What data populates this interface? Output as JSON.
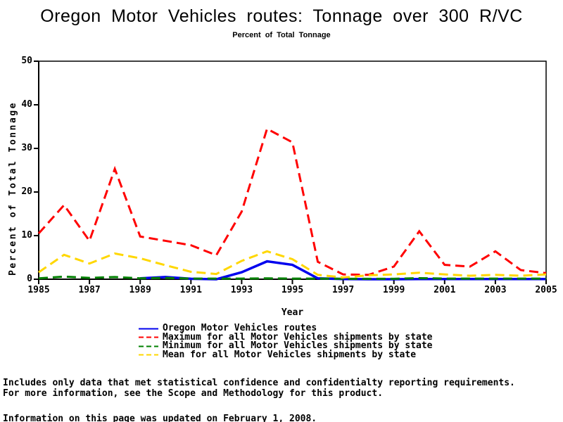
{
  "chart_data": {
    "type": "line",
    "title": "Oregon Motor Vehicles routes: Tonnage over 300 R/VC",
    "subtitle": "Percent of Total Tonnage",
    "xlabel": "Year",
    "ylabel": "Percent of Total Tonnage",
    "ylim": [
      0,
      50
    ],
    "yticks": [
      0,
      10,
      20,
      30,
      40,
      50
    ],
    "xticks": [
      1985,
      1987,
      1989,
      1991,
      1993,
      1995,
      1997,
      1999,
      2001,
      2003,
      2005
    ],
    "x": [
      1985,
      1986,
      1987,
      1988,
      1989,
      1990,
      1991,
      1992,
      1993,
      1994,
      1995,
      1996,
      1997,
      1998,
      1999,
      2000,
      2001,
      2002,
      2003,
      2004,
      2005
    ],
    "grid": false,
    "legend_position": "bottom",
    "series": [
      {
        "name": "Oregon Motor Vehicles routes",
        "color": "#0000EE",
        "style": "solid",
        "values": [
          null,
          null,
          null,
          null,
          0.2,
          0.5,
          0.1,
          0.0,
          1.6,
          4.1,
          3.3,
          0.2,
          0.05,
          0.0,
          0.0,
          0.05,
          0.05,
          0.05,
          0.05,
          0.05,
          0.05
        ]
      },
      {
        "name": "Maximum for all Motor Vehicles shipments by state",
        "color": "#FF0000",
        "style": "dashed",
        "values": [
          10.5,
          17.0,
          8.8,
          25.3,
          9.8,
          8.8,
          7.8,
          5.5,
          15.5,
          34.5,
          31.4,
          4.0,
          1.1,
          1.0,
          2.9,
          11.0,
          3.3,
          2.9,
          6.4,
          2.1,
          1.4
        ]
      },
      {
        "name": "Minimum for all Motor Vehicles shipments by state",
        "color": "#008000",
        "style": "dashed",
        "values": [
          0.2,
          0.6,
          0.3,
          0.5,
          0.2,
          0.3,
          0.15,
          0.15,
          0.15,
          0.2,
          0.15,
          0.15,
          0.1,
          0.1,
          0.1,
          0.25,
          0.15,
          0.15,
          0.15,
          0.15,
          0.15
        ]
      },
      {
        "name": "Mean for all Motor Vehicles shipments by state",
        "color": "#FFD700",
        "style": "dashed",
        "values": [
          1.6,
          5.6,
          3.6,
          5.9,
          4.8,
          3.2,
          1.7,
          1.2,
          4.2,
          6.4,
          4.6,
          1.0,
          0.4,
          0.9,
          1.1,
          1.5,
          1.1,
          0.8,
          1.0,
          0.8,
          1.1
        ]
      }
    ]
  },
  "notes": {
    "line1": "Includes only data that met statistical confidence and confidentialty reporting requirements.",
    "line2": "For more information, see the Scope and Methodology for this product.",
    "line3": "Information on this page was updated on February 1, 2008."
  }
}
